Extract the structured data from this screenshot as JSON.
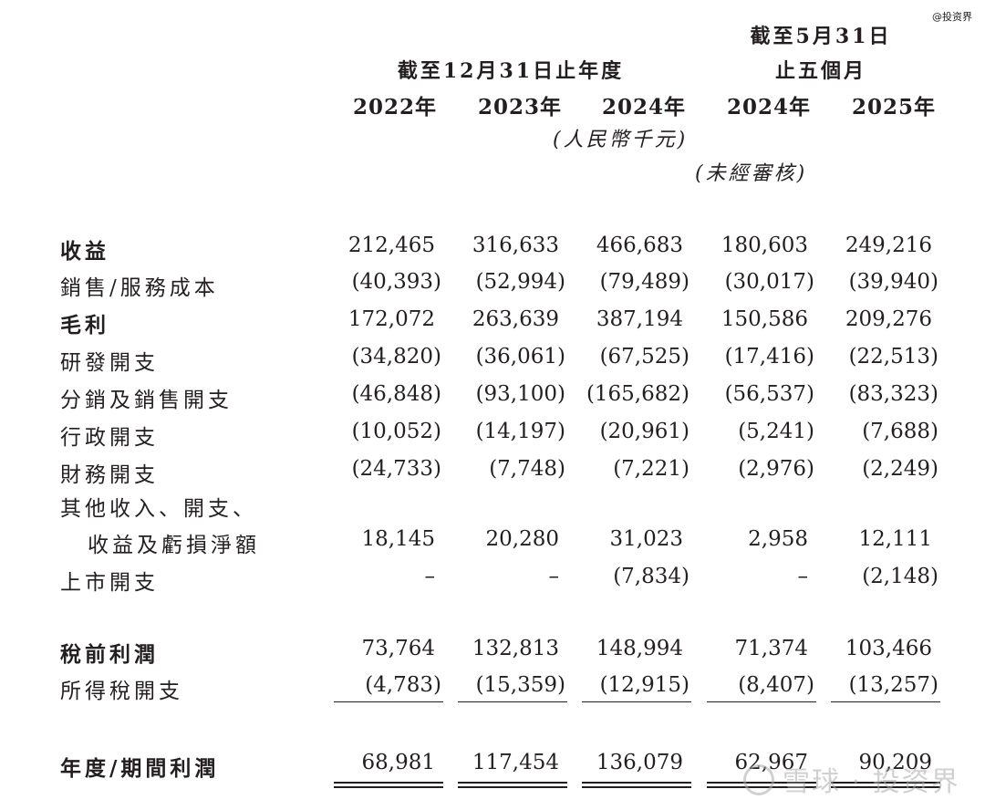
{
  "watermark_top": "@投资界",
  "header": {
    "period_right_line1": "截至5月31日",
    "period_right_line2": "止五個月",
    "period_left": "截至12月31日止年度",
    "years": [
      "2022年",
      "2023年",
      "2024年",
      "2024年",
      "2025年"
    ],
    "unit": "(人民幣千元)",
    "unaudited": "(未經審核)"
  },
  "rows": [
    {
      "label": "收益",
      "values": [
        "212,465",
        "316,633",
        "466,683",
        "180,603",
        "249,216"
      ]
    },
    {
      "label": "銷售/服務成本",
      "values": [
        "(40,393)",
        "(52,994)",
        "(79,489)",
        "(30,017)",
        "(39,940)"
      ]
    },
    {
      "label": "毛利",
      "values": [
        "172,072",
        "263,639",
        "387,194",
        "150,586",
        "209,276"
      ]
    },
    {
      "label": "研發開支",
      "values": [
        "(34,820)",
        "(36,061)",
        "(67,525)",
        "(17,416)",
        "(22,513)"
      ]
    },
    {
      "label": "分銷及銷售開支",
      "values": [
        "(46,848)",
        "(93,100)",
        "(165,682)",
        "(56,537)",
        "(83,323)"
      ]
    },
    {
      "label": "行政開支",
      "values": [
        "(10,052)",
        "(14,197)",
        "(20,961)",
        "(5,241)",
        "(7,688)"
      ]
    },
    {
      "label": "財務開支",
      "values": [
        "(24,733)",
        "(7,748)",
        "(7,221)",
        "(2,976)",
        "(2,249)"
      ]
    },
    {
      "label": "其他收入、開支、",
      "label2": "收益及虧損淨額",
      "values": [
        "18,145",
        "20,280",
        "31,023",
        "2,958",
        "12,111"
      ]
    },
    {
      "label": "上市開支",
      "values": [
        "–",
        "–",
        "(7,834)",
        "–",
        "(2,148)"
      ]
    },
    {
      "label": "稅前利潤",
      "values": [
        "73,764",
        "132,813",
        "148,994",
        "71,374",
        "103,466"
      ]
    },
    {
      "label": "所得稅開支",
      "values": [
        "(4,783)",
        "(15,359)",
        "(12,915)",
        "(8,407)",
        "(13,257)"
      ]
    },
    {
      "label": "年度/期間利潤",
      "values": [
        "68,981",
        "117,454",
        "136,079",
        "62,967",
        "90,209"
      ]
    }
  ],
  "watermark_bottom": "雪球 · 投资界"
}
